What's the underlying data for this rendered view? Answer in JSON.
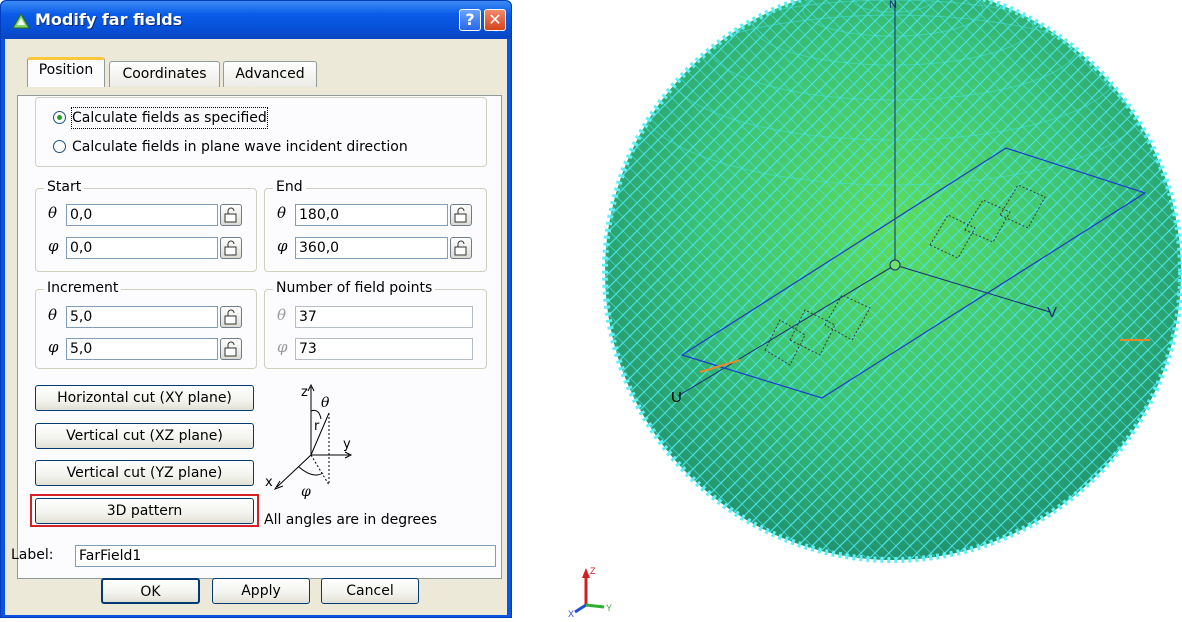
{
  "dialog": {
    "title": "Modify far fields",
    "help_label": "?",
    "close_label": "✕",
    "tabs": [
      {
        "label": "Position",
        "active": true
      },
      {
        "label": "Coordinates",
        "active": false
      },
      {
        "label": "Advanced",
        "active": false
      }
    ],
    "options": [
      {
        "label": "Calculate fields as specified",
        "checked": true
      },
      {
        "label": "Calculate fields in plane wave incident direction",
        "checked": false
      }
    ],
    "start": {
      "legend": "Start",
      "theta_symbol": "θ",
      "phi_symbol": "φ",
      "theta": "0,0",
      "phi": "0,0"
    },
    "end": {
      "legend": "End",
      "theta_symbol": "θ",
      "phi_symbol": "φ",
      "theta": "180,0",
      "phi": "360,0"
    },
    "increment": {
      "legend": "Increment",
      "theta_symbol": "θ",
      "phi_symbol": "φ",
      "theta": "5,0",
      "phi": "5,0"
    },
    "points": {
      "legend": "Number of field points",
      "theta_symbol": "θ",
      "phi_symbol": "φ",
      "theta": "37",
      "phi": "73"
    },
    "buttons": {
      "horizontal_cut": "Horizontal cut (XY plane)",
      "vertical_cut_xz": "Vertical cut (XZ plane)",
      "vertical_cut_yz": "Vertical cut (YZ plane)",
      "pattern_3d": "3D pattern"
    },
    "diagram": {
      "z": "z",
      "y": "y",
      "x": "x",
      "r": "r",
      "theta": "θ",
      "phi": "φ"
    },
    "angles_note": "All angles are in degrees",
    "label_caption": "Label:",
    "label_value": "FarField1",
    "footer": {
      "ok": "OK",
      "apply": "Apply",
      "cancel": "Cancel"
    }
  },
  "viewport": {
    "axis_labels": {
      "u": "U",
      "v": "V",
      "n": "N"
    },
    "triad_labels": {
      "z": "Z",
      "x": "X",
      "y": "Y"
    },
    "colors": {
      "sphere_center": "#55d46a",
      "sphere_edge": "#1c8a66",
      "mesh": "#47e2e6"
    }
  }
}
